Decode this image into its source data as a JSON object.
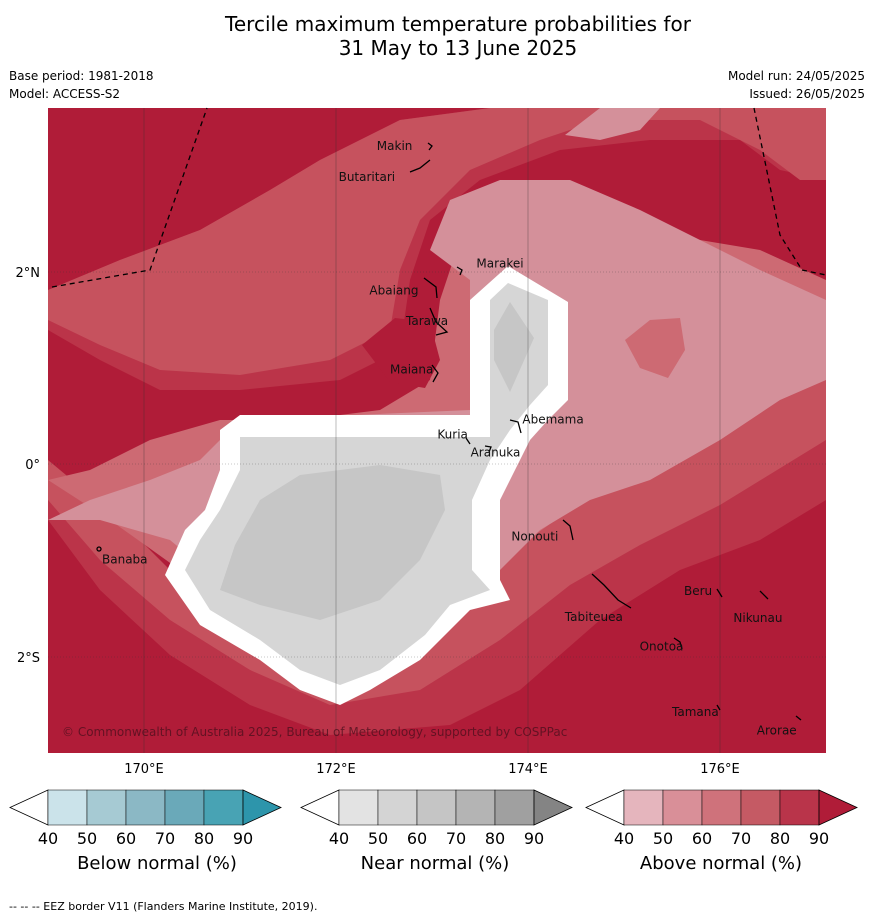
{
  "header": {
    "title_line1": "Tercile maximum temperature probabilities for",
    "title_line2": "31 May to 13 June 2025",
    "base_period": "Base period: 1981-2018",
    "model": "Model: ACCESS-S2",
    "model_run": "Model run: 24/05/2025",
    "issued": "Issued: 26/05/2025"
  },
  "map": {
    "latitude_labels": [
      "2°N",
      "0°",
      "2°S"
    ],
    "longitude_labels": [
      "170°E",
      "172°E",
      "174°E",
      "176°E"
    ],
    "places": [
      {
        "name": "Makin",
        "lon": 172.8,
        "lat": 3.3
      },
      {
        "name": "Butaritari",
        "lon": 172.6,
        "lat": 3.0
      },
      {
        "name": "Marakei",
        "lon": 173.4,
        "lat": 2.0
      },
      {
        "name": "Abaiang",
        "lon": 172.9,
        "lat": 1.8
      },
      {
        "name": "Tarawa",
        "lon": 173.0,
        "lat": 1.4
      },
      {
        "name": "Maiana",
        "lon": 173.0,
        "lat": 0.9
      },
      {
        "name": "Abemama",
        "lon": 173.9,
        "lat": 0.4
      },
      {
        "name": "Kuria",
        "lon": 173.4,
        "lat": 0.2
      },
      {
        "name": "Aranuka",
        "lon": 173.6,
        "lat": 0.2
      },
      {
        "name": "Banaba",
        "lon": 169.5,
        "lat": -0.9
      },
      {
        "name": "Nonouti",
        "lon": 174.4,
        "lat": -0.7
      },
      {
        "name": "Tabiteuea",
        "lon": 174.8,
        "lat": -1.3
      },
      {
        "name": "Beru",
        "lon": 176.0,
        "lat": -1.3
      },
      {
        "name": "Nikunau",
        "lon": 176.4,
        "lat": -1.4
      },
      {
        "name": "Onotoa",
        "lon": 175.6,
        "lat": -1.8
      },
      {
        "name": "Tamana",
        "lon": 176.0,
        "lat": -2.5
      },
      {
        "name": "Arorae",
        "lon": 176.8,
        "lat": -2.6
      }
    ],
    "credit": "© Commonwealth of Australia 2025, Bureau of Meteorology, supported by COSPPac",
    "fill_colors": {
      "above_90": "#b01c38",
      "above_80": "#bb3449",
      "above_70": "#c6525e",
      "above_60": "#cd6a73",
      "above_50": "#d4909a",
      "no_dominant": "#ffffff",
      "near_50": "#d6d6d6",
      "near_60": "#c6c6c6"
    }
  },
  "colorbars": [
    {
      "title": "Below normal (%)",
      "ticks": [
        "40",
        "50",
        "60",
        "70",
        "80",
        "90"
      ],
      "colors": [
        "#ffffff",
        "#cbe3ea",
        "#a6cad3",
        "#8bb8c5",
        "#6aa9b9",
        "#48a3b4",
        "#2d95ab"
      ]
    },
    {
      "title": "Near normal (%)",
      "ticks": [
        "40",
        "50",
        "60",
        "70",
        "80",
        "90"
      ],
      "colors": [
        "#ffffff",
        "#e3e3e3",
        "#d4d4d4",
        "#c5c5c5",
        "#b4b4b4",
        "#a0a0a0",
        "#848484"
      ]
    },
    {
      "title": "Above normal (%)",
      "ticks": [
        "40",
        "50",
        "60",
        "70",
        "80",
        "90"
      ],
      "colors": [
        "#ffffff",
        "#e5b5bd",
        "#d98f98",
        "#cf727b",
        "#c55a64",
        "#b9344a",
        "#b01c38"
      ]
    }
  ],
  "footer": {
    "eez_note": "--  --  -- EEZ border V11 (Flanders Marine Institute, 2019)."
  }
}
